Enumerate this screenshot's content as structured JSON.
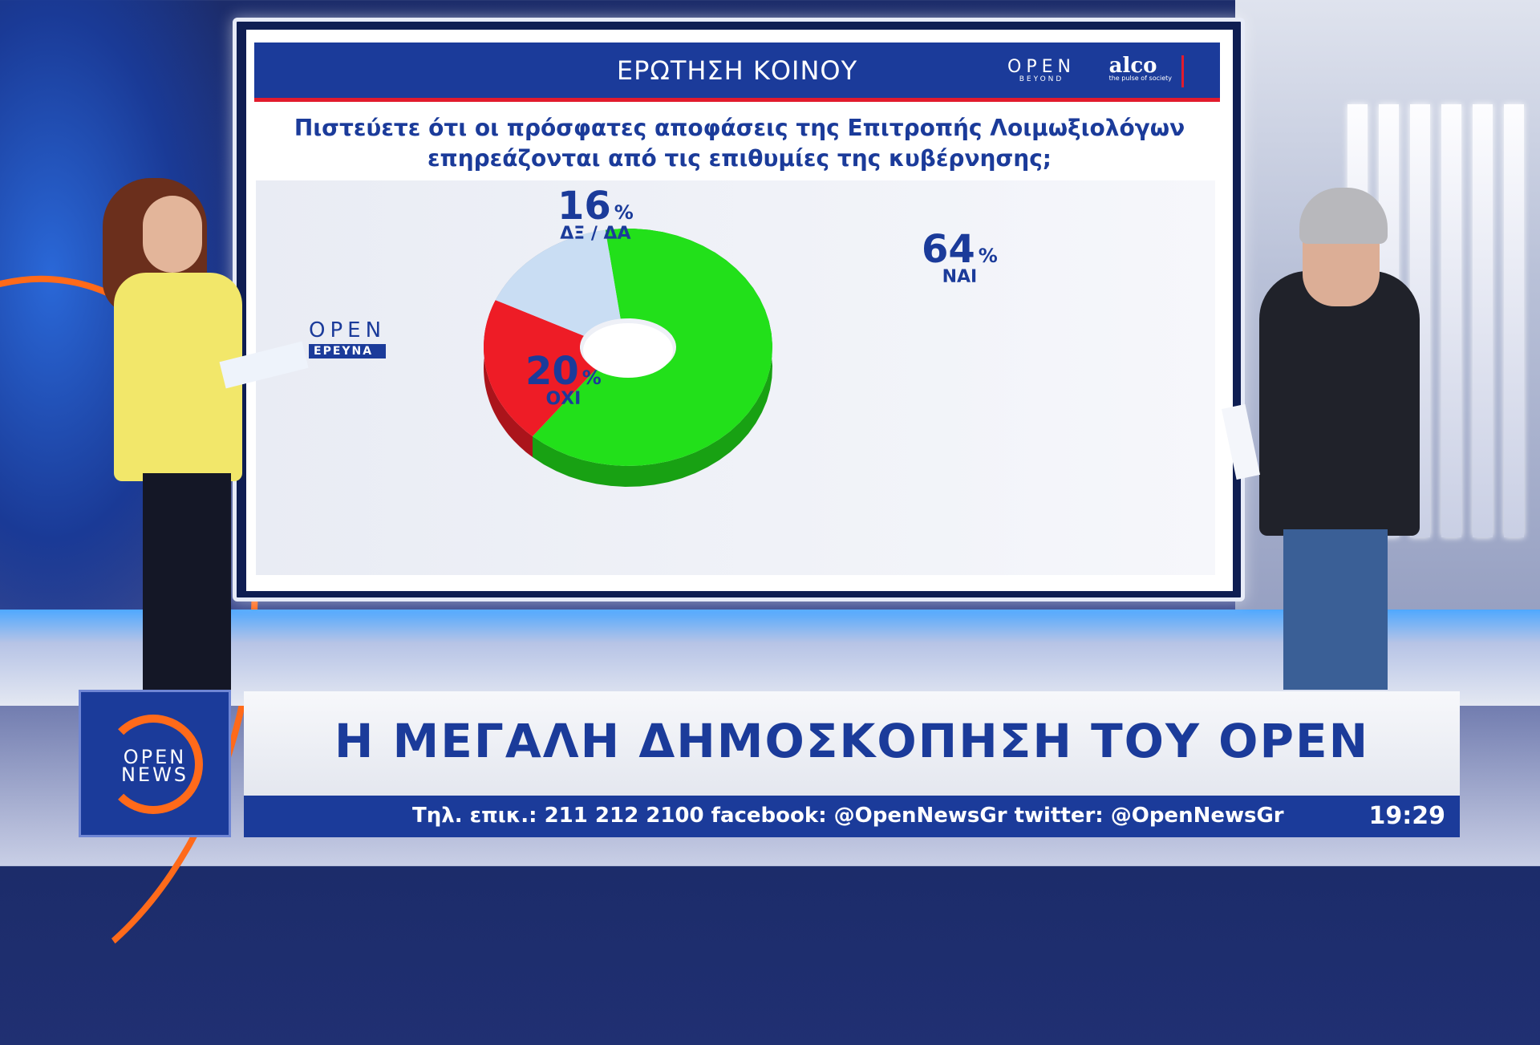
{
  "slide": {
    "header_title": "ΕΡΩΤΗΣΗ ΚΟΙΝΟΥ",
    "brand_open": "OPEN",
    "brand_open_sub": "BEYOND",
    "brand_alco": "alco",
    "brand_alco_sub": "the pulse of society",
    "question_line1": "Πιστεύετε ότι οι πρόσφατες αποφάσεις της Επιτροπής Λοιμωξιολόγων",
    "question_line2": "επηρεάζονται από τις επιθυμίες της κυβέρνησης;",
    "logo_open": "OPEN",
    "logo_ereyna": "ΕΡΕΥΝΑ",
    "percent_sign": "%"
  },
  "chart_data": {
    "type": "pie",
    "style": "3d-donut",
    "title": "Πιστεύετε ότι οι πρόσφατες αποφάσεις της Επιτροπής Λοιμωξιολόγων επηρεάζονται από τις επιθυμίες της κυβέρνησης;",
    "categories": [
      "ΝΑΙ",
      "ΟΧΙ",
      "ΔΞ / ΔΑ"
    ],
    "values": [
      64,
      20,
      16
    ],
    "value_labels": [
      "64",
      "20",
      "16"
    ],
    "unit": "%",
    "colors": [
      "#22e01a",
      "#ee1c26",
      "#c9ddf3"
    ],
    "legend": "none"
  },
  "lower_third": {
    "logo_line1": "OPEN",
    "logo_line2": "NEWS",
    "headline": "Η ΜΕΓΑΛΗ ΔΗΜΟΣΚΟΠΗΣΗ ΤΟΥ OPEN",
    "ticker": "Τηλ. επικ.: 211 212 2100 facebook: @OpenNewsGr twitter: @OpenNewsGr",
    "clock": "19:29"
  },
  "colors": {
    "brand_blue": "#1b3b9a",
    "accent_red": "#e21b2d",
    "accent_orange": "#ff6a1a"
  }
}
